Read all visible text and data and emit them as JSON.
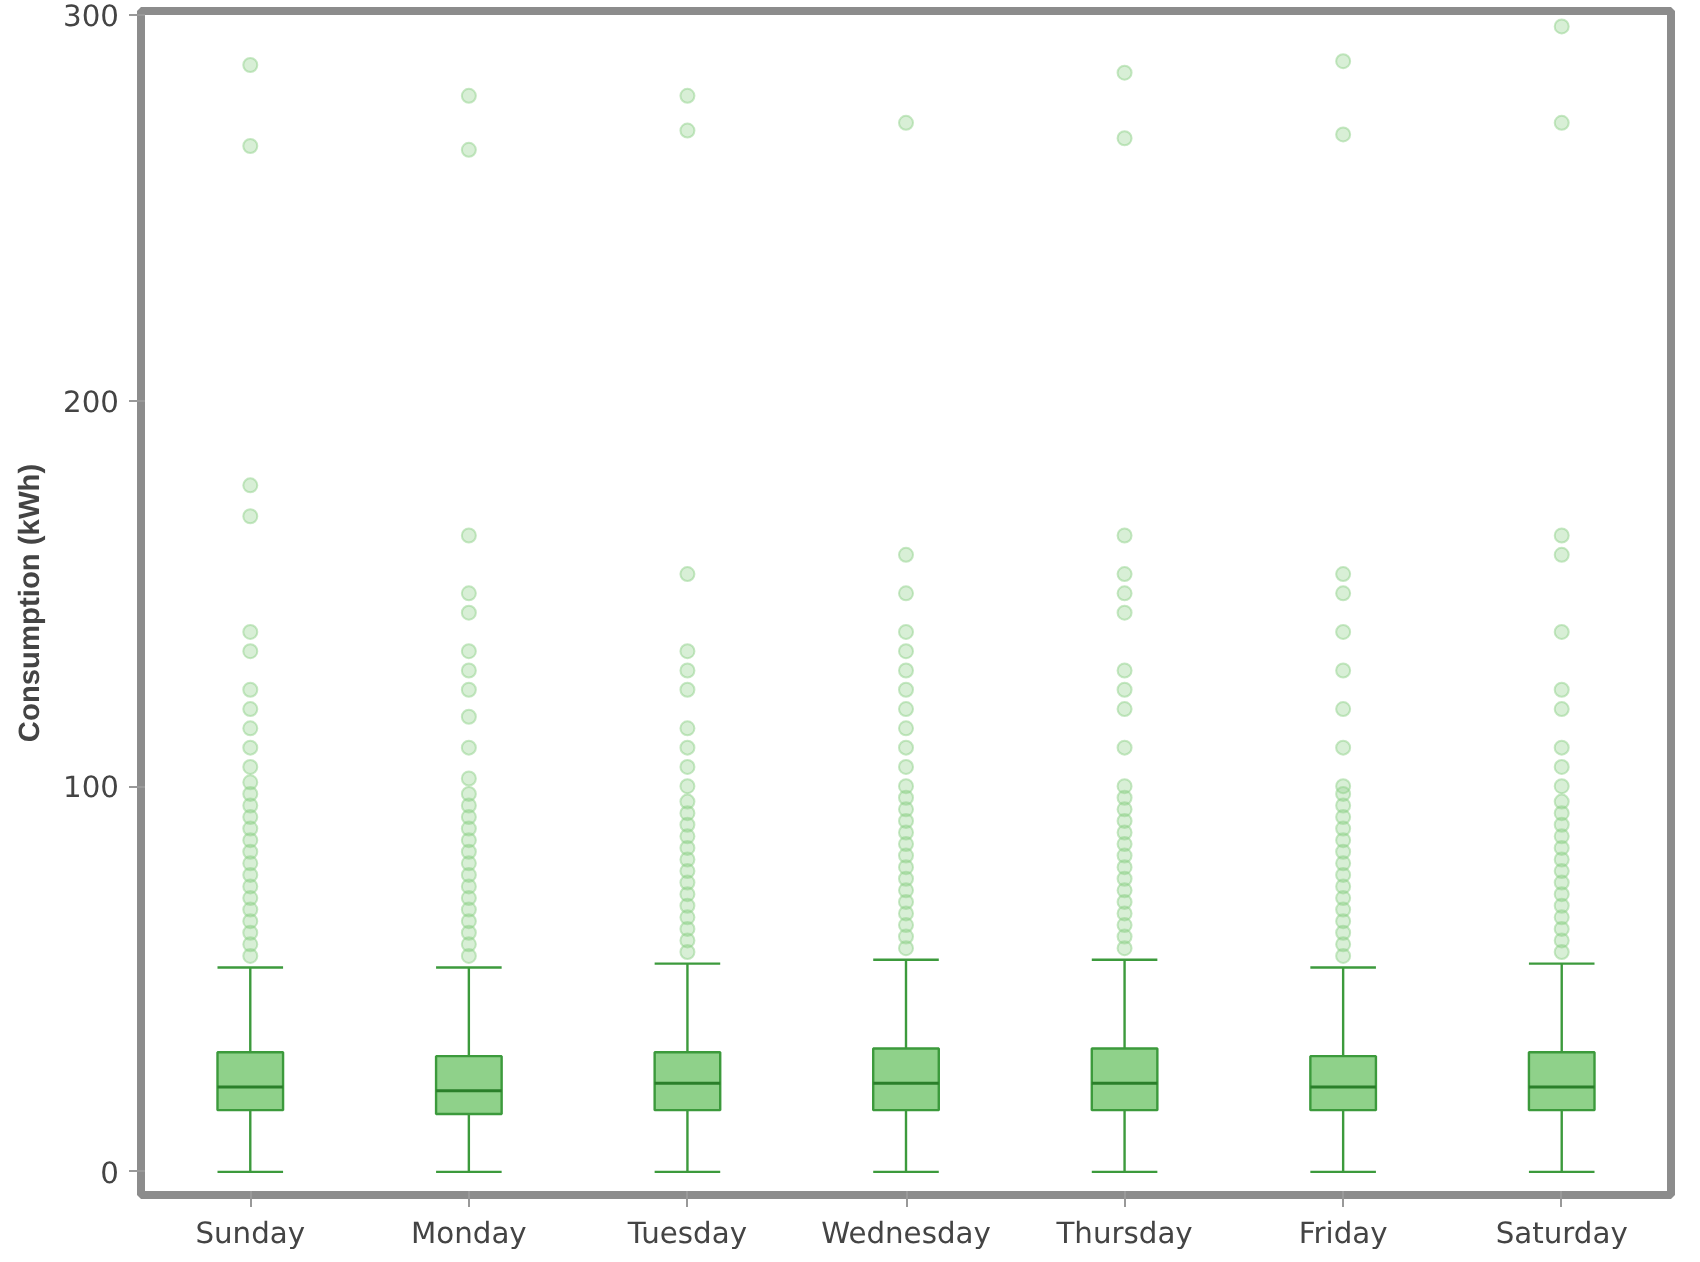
{
  "chart_data": {
    "type": "box",
    "ylabel": "Consumption (kWh)",
    "categories": [
      "Sunday",
      "Monday",
      "Tuesday",
      "Wednesday",
      "Thursday",
      "Friday",
      "Saturday"
    ],
    "ylim": [
      -6,
      301
    ],
    "yticks": [
      0,
      100,
      200,
      300
    ],
    "grid": false,
    "color": "#8fd18a",
    "boxes": [
      {
        "low": 0,
        "q1": 16,
        "median": 22,
        "q3": 31,
        "high": 53,
        "outliers": [
          56,
          59,
          62,
          65,
          68,
          71,
          74,
          77,
          80,
          83,
          86,
          89,
          92,
          95,
          98,
          101,
          105,
          110,
          115,
          120,
          125,
          135,
          140,
          170,
          178,
          266,
          287
        ]
      },
      {
        "low": 0,
        "q1": 15,
        "median": 21,
        "q3": 30,
        "high": 53,
        "outliers": [
          56,
          59,
          62,
          65,
          68,
          71,
          74,
          77,
          80,
          83,
          86,
          89,
          92,
          95,
          98,
          102,
          110,
          118,
          125,
          130,
          135,
          145,
          150,
          165,
          265,
          279
        ]
      },
      {
        "low": 0,
        "q1": 16,
        "median": 23,
        "q3": 31,
        "high": 54,
        "outliers": [
          57,
          60,
          63,
          66,
          69,
          72,
          75,
          78,
          81,
          84,
          87,
          90,
          93,
          96,
          100,
          105,
          110,
          115,
          125,
          130,
          135,
          155,
          270,
          279
        ]
      },
      {
        "low": 0,
        "q1": 16,
        "median": 23,
        "q3": 32,
        "high": 55,
        "outliers": [
          58,
          61,
          64,
          67,
          70,
          73,
          76,
          79,
          82,
          85,
          88,
          91,
          94,
          97,
          100,
          105,
          110,
          115,
          120,
          125,
          130,
          135,
          140,
          150,
          160,
          272
        ]
      },
      {
        "low": 0,
        "q1": 16,
        "median": 23,
        "q3": 32,
        "high": 55,
        "outliers": [
          58,
          61,
          64,
          67,
          70,
          73,
          76,
          79,
          82,
          85,
          88,
          91,
          94,
          97,
          100,
          110,
          120,
          125,
          130,
          145,
          150,
          155,
          165,
          268,
          285
        ]
      },
      {
        "low": 0,
        "q1": 16,
        "median": 22,
        "q3": 30,
        "high": 53,
        "outliers": [
          56,
          59,
          62,
          65,
          68,
          71,
          74,
          77,
          80,
          83,
          86,
          89,
          92,
          95,
          98,
          100,
          110,
          120,
          130,
          140,
          150,
          155,
          269,
          288
        ]
      },
      {
        "low": 0,
        "q1": 16,
        "median": 22,
        "q3": 31,
        "high": 54,
        "outliers": [
          57,
          60,
          63,
          66,
          69,
          72,
          75,
          78,
          81,
          84,
          87,
          90,
          93,
          96,
          100,
          105,
          110,
          120,
          125,
          140,
          160,
          165,
          272,
          297
        ]
      }
    ]
  }
}
